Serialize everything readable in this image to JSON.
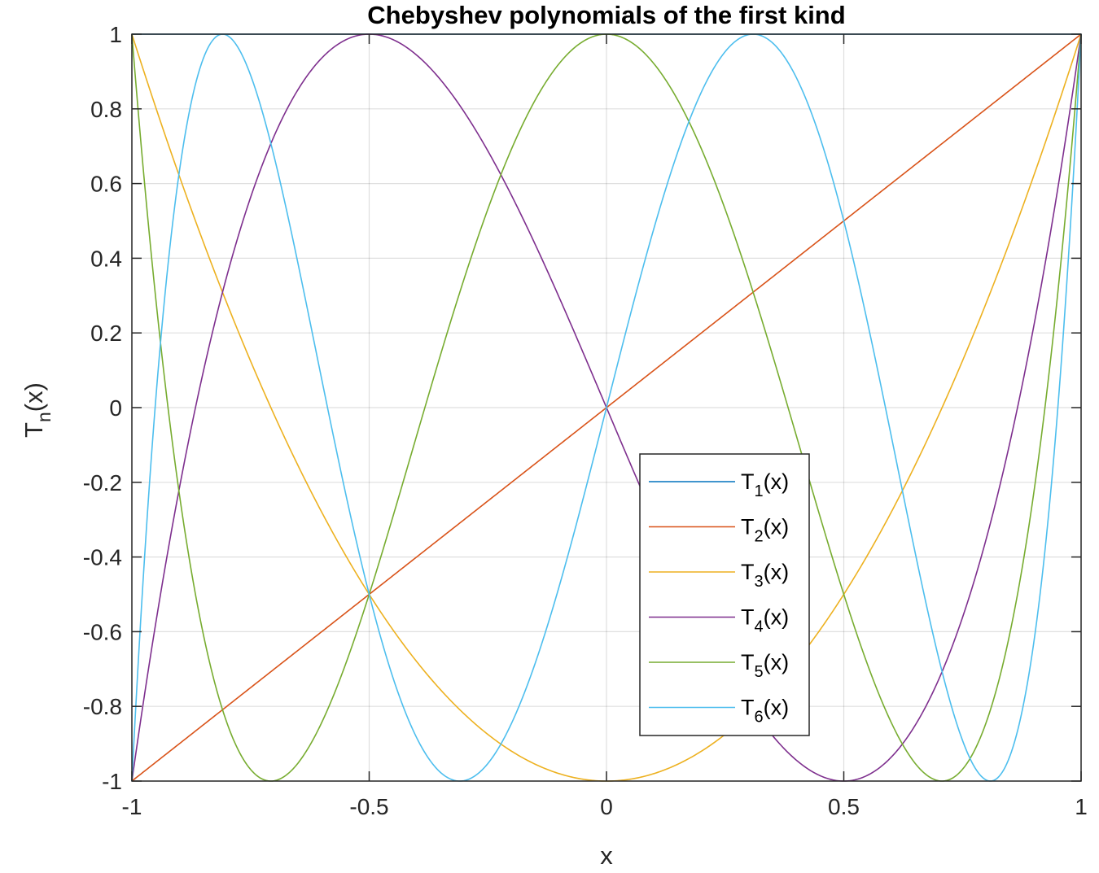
{
  "chart_data": {
    "type": "line",
    "title": "Chebyshev polynomials of the first kind",
    "xlabel": "x",
    "ylabel": {
      "main": "T",
      "sub": "n",
      "suffix": "(x)"
    },
    "xlim": [
      -1,
      1
    ],
    "ylim": [
      -1,
      1
    ],
    "xticks": [
      -1,
      -0.5,
      0,
      0.5,
      1
    ],
    "xtick_labels": [
      "-1",
      "-0.5",
      "0",
      "0.5",
      "1"
    ],
    "yticks": [
      -1,
      -0.8,
      -0.6,
      -0.4,
      -0.2,
      0,
      0.2,
      0.4,
      0.6,
      0.8,
      1
    ],
    "ytick_labels": [
      "-1",
      "-0.8",
      "-0.6",
      "-0.4",
      "-0.2",
      "0",
      "0.2",
      "0.4",
      "0.6",
      "0.8",
      "1"
    ],
    "grid": true,
    "legend": {
      "placement": "lower-center-right"
    },
    "series": [
      {
        "name": "T1(x)",
        "label_main": "T",
        "label_sub": "1",
        "label_suffix": "(x)",
        "color": "#0072BD",
        "degree": 0,
        "x": [
          -1,
          -0.5,
          0,
          0.5,
          1
        ],
        "y": [
          1,
          1,
          1,
          1,
          1
        ]
      },
      {
        "name": "T2(x)",
        "label_main": "T",
        "label_sub": "2",
        "label_suffix": "(x)",
        "color": "#D95319",
        "degree": 1,
        "x": [
          -1,
          -0.5,
          0,
          0.5,
          1
        ],
        "y": [
          -1,
          -0.5,
          0,
          0.5,
          1
        ]
      },
      {
        "name": "T3(x)",
        "label_main": "T",
        "label_sub": "3",
        "label_suffix": "(x)",
        "color": "#EDB120",
        "degree": 2,
        "x": [
          -1,
          -0.5,
          0,
          0.5,
          1
        ],
        "y": [
          1,
          -0.5,
          -1,
          -0.5,
          1
        ]
      },
      {
        "name": "T4(x)",
        "label_main": "T",
        "label_sub": "4",
        "label_suffix": "(x)",
        "color": "#7E2F8E",
        "degree": 3,
        "x": [
          -1,
          -0.5,
          0,
          0.5,
          1
        ],
        "y": [
          -1,
          1,
          0,
          -1,
          1
        ]
      },
      {
        "name": "T5(x)",
        "label_main": "T",
        "label_sub": "5",
        "label_suffix": "(x)",
        "color": "#77AC30",
        "degree": 4,
        "x": [
          -1,
          -0.5,
          0,
          0.5,
          1
        ],
        "y": [
          1,
          -0.5,
          1,
          -0.5,
          1
        ]
      },
      {
        "name": "T6(x)",
        "label_main": "T",
        "label_sub": "6",
        "label_suffix": "(x)",
        "color": "#4DBEEE",
        "degree": 5,
        "x": [
          -1,
          -0.5,
          0,
          0.5,
          1
        ],
        "y": [
          -1,
          -0.5,
          0,
          0.5,
          1
        ]
      }
    ]
  }
}
